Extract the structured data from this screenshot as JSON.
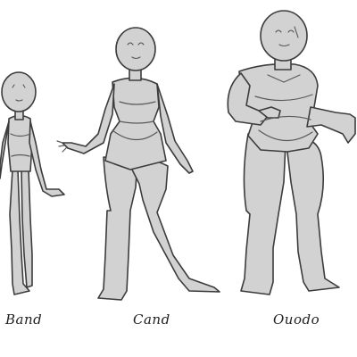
{
  "figures": [
    {
      "caption": "Band"
    },
    {
      "caption": "Cand"
    },
    {
      "caption": "Ouodo"
    }
  ],
  "colors": {
    "background": "#ffffff",
    "body_fill": "#d2d2d2",
    "outline": "#3c3c3c"
  }
}
